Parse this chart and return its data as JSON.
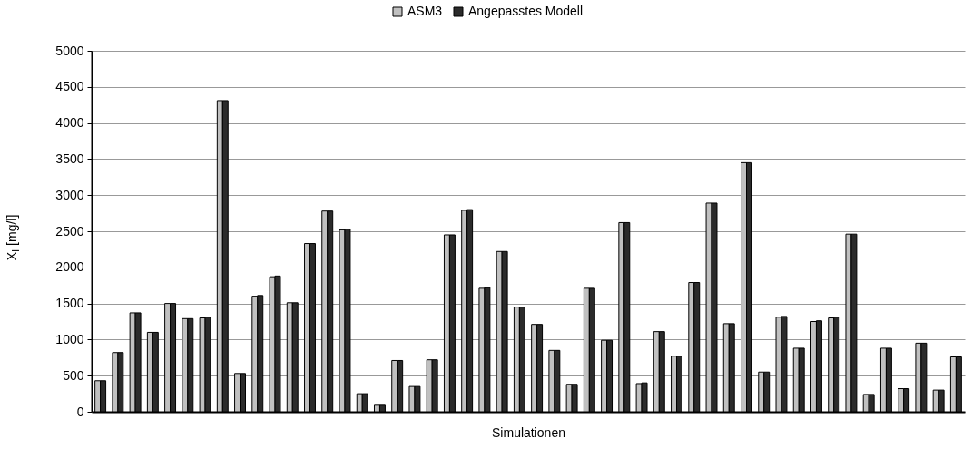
{
  "chart_data": {
    "type": "bar",
    "xlabel": "Simulationen",
    "ylabel": "X$_{I}$ [mg/l]",
    "categories": [
      null,
      null,
      null,
      null,
      null,
      null,
      null,
      null,
      null,
      null,
      null,
      null,
      null,
      null,
      null,
      null,
      null,
      null,
      null,
      null,
      null,
      null,
      null,
      null,
      null,
      null,
      null,
      null,
      null,
      null,
      null,
      null,
      null,
      null,
      null,
      null,
      null,
      null,
      null,
      null,
      null,
      null,
      null,
      null,
      null,
      null,
      null,
      null,
      null,
      null
    ],
    "series": [
      {
        "name": "ASM3",
        "color": "#c0c0c0",
        "values": [
          430,
          820,
          1370,
          1100,
          1500,
          1290,
          1300,
          4310,
          530,
          1600,
          1870,
          1510,
          2330,
          2780,
          2520,
          250,
          90,
          710,
          350,
          720,
          2450,
          2790,
          1710,
          2220,
          1450,
          1210,
          850,
          380,
          1710,
          990,
          2620,
          390,
          1110,
          770,
          1790,
          2890,
          1220,
          3450,
          550,
          1310,
          880,
          1250,
          1300,
          2460,
          240,
          880,
          320,
          950,
          300,
          760
        ]
      },
      {
        "name": "Angepasstes Modell",
        "color": "#2b2b2b",
        "values": [
          430,
          820,
          1370,
          1100,
          1500,
          1290,
          1310,
          4310,
          530,
          1610,
          1880,
          1510,
          2330,
          2780,
          2530,
          250,
          90,
          710,
          350,
          720,
          2450,
          2800,
          1720,
          2220,
          1450,
          1210,
          850,
          380,
          1710,
          990,
          2620,
          400,
          1110,
          770,
          1790,
          2890,
          1220,
          3450,
          550,
          1320,
          880,
          1260,
          1310,
          2460,
          240,
          880,
          320,
          950,
          300,
          760
        ]
      }
    ],
    "ylim": [
      0,
      5000
    ],
    "yticks": [
      0,
      500,
      1000,
      1500,
      2000,
      2500,
      3000,
      3500,
      4000,
      4500,
      5000
    ],
    "grid": "y",
    "legend": "top"
  }
}
